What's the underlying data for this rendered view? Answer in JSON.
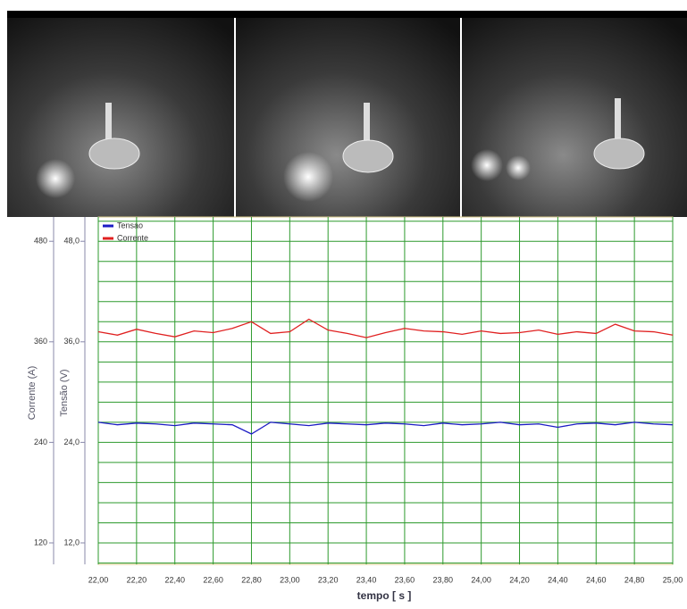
{
  "chart_data": {
    "type": "line",
    "xlabel": "tempo [ s ]",
    "ylabel": "Tensão (V)",
    "y2label": "Corrente (A)",
    "x": [
      22.0,
      22.1,
      22.2,
      22.3,
      22.4,
      22.5,
      22.6,
      22.7,
      22.8,
      22.9,
      23.0,
      23.1,
      23.2,
      23.3,
      23.4,
      23.5,
      23.6,
      23.7,
      23.8,
      23.9,
      24.0,
      24.1,
      24.2,
      24.3,
      24.4,
      24.5,
      24.6,
      24.7,
      24.8,
      24.9,
      25.0
    ],
    "series": [
      {
        "name": "Tensao",
        "color": "#1c1cc4",
        "values": [
          26.4,
          26.1,
          26.3,
          26.2,
          26.0,
          26.3,
          26.2,
          26.1,
          25.0,
          26.4,
          26.2,
          26.0,
          26.3,
          26.2,
          26.1,
          26.3,
          26.2,
          26.0,
          26.3,
          26.1,
          26.2,
          26.4,
          26.1,
          26.2,
          25.8,
          26.2,
          26.3,
          26.1,
          26.4,
          26.2,
          26.1
        ]
      },
      {
        "name": "Corrente",
        "color": "#e02020",
        "axis": "y2",
        "values": [
          372,
          368,
          375,
          370,
          366,
          373,
          371,
          376,
          384,
          370,
          372,
          387,
          374,
          370,
          365,
          371,
          376,
          373,
          372,
          369,
          373,
          370,
          371,
          374,
          369,
          372,
          370,
          381,
          373,
          372,
          368
        ]
      }
    ],
    "xlim": [
      22.0,
      25.0
    ],
    "xticks": [
      {
        "value": 22.0,
        "label": "22,00"
      },
      {
        "value": 22.2,
        "label": "22,20"
      },
      {
        "value": 22.4,
        "label": "22,40"
      },
      {
        "value": 22.6,
        "label": "22,60"
      },
      {
        "value": 22.8,
        "label": "22,80"
      },
      {
        "value": 23.0,
        "label": "23,00"
      },
      {
        "value": 23.2,
        "label": "23,20"
      },
      {
        "value": 23.4,
        "label": "23,40"
      },
      {
        "value": 23.6,
        "label": "23,60"
      },
      {
        "value": 23.8,
        "label": "23,80"
      },
      {
        "value": 24.0,
        "label": "24,00"
      },
      {
        "value": 24.2,
        "label": "24,20"
      },
      {
        "value": 24.4,
        "label": "24,40"
      },
      {
        "value": 24.6,
        "label": "24,60"
      },
      {
        "value": 24.8,
        "label": "24,80"
      },
      {
        "value": 25.0,
        "label": "25,00"
      }
    ],
    "ylim": [
      9.44,
      50.9
    ],
    "yticks": [
      {
        "value": 12,
        "label": "12,0"
      },
      {
        "value": 24,
        "label": "24,0"
      },
      {
        "value": 36,
        "label": "36,0"
      },
      {
        "value": 48,
        "label": "48,0"
      }
    ],
    "y2lim": [
      94.4,
      509
    ],
    "y2ticks": [
      120,
      240,
      360,
      480
    ],
    "ygrid": [
      9.6,
      12,
      14.4,
      16.8,
      19.2,
      21.6,
      24,
      26.4,
      28.8,
      31.2,
      33.6,
      36,
      38.4,
      40.8,
      43.2,
      45.6,
      48,
      50.4
    ],
    "grid": true,
    "grid_color": "#2e9a2e",
    "legend": "upper left"
  }
}
